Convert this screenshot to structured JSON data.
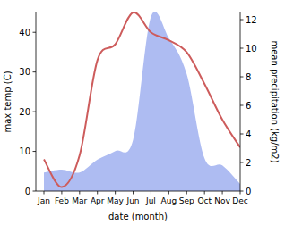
{
  "chart_data": {
    "type": "line",
    "categories": [
      "Jan",
      "Feb",
      "Mar",
      "Apr",
      "May",
      "Jun",
      "Jul",
      "Aug",
      "Sep",
      "Oct",
      "Nov",
      "Dec"
    ],
    "x_label": "date (month)",
    "y_label": "max temp (C)",
    "y2_label": "mean precipitation (kg/m2)",
    "ylim": [
      0,
      45
    ],
    "yticks": [
      0,
      10,
      20,
      30,
      40
    ],
    "y2lim": [
      0,
      12.5
    ],
    "y2ticks": [
      0,
      2,
      4,
      6,
      8,
      10,
      12
    ],
    "grid": false,
    "series": [
      {
        "name": "mean precipitation (kg/m2)",
        "type": "area",
        "axis": "y2",
        "color": "#aebcf2",
        "values": [
          1.3,
          1.5,
          1.3,
          2.2,
          2.8,
          3.6,
          12.2,
          10.7,
          8.2,
          2.3,
          1.8,
          0.5
        ]
      },
      {
        "name": "max temp (C)",
        "type": "line",
        "color": "#cd5c5c",
        "values": [
          8,
          1,
          9,
          33,
          37,
          45,
          40,
          38,
          35,
          27,
          18,
          11
        ]
      }
    ]
  }
}
